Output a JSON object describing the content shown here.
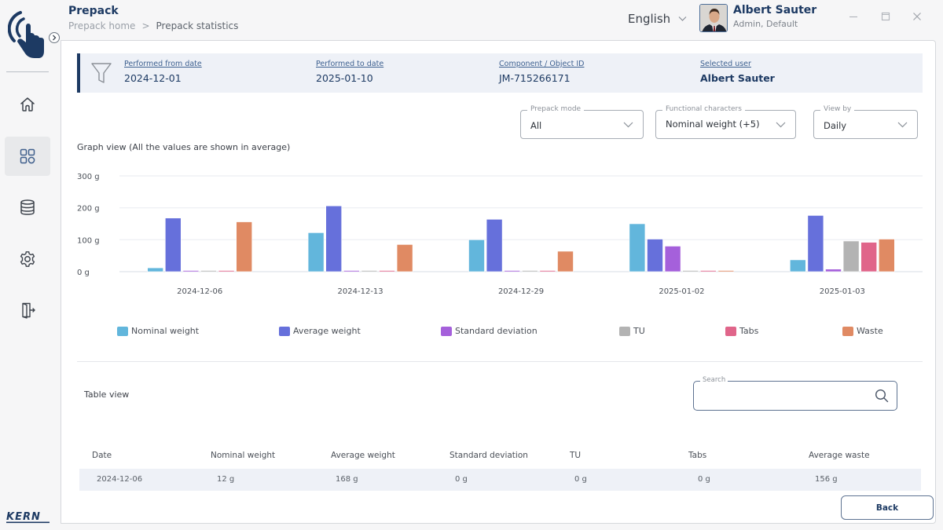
{
  "app": {
    "title": "Prepack",
    "breadcrumb": [
      "Prepack home",
      "Prepack statistics"
    ],
    "breadcrumb_separator": ">",
    "language": "English",
    "brand": "KERN"
  },
  "user": {
    "name": "Albert Sauter",
    "role": "Admin, Default"
  },
  "sidebar": {
    "items": [
      {
        "name": "home",
        "icon": "home-icon",
        "active": false
      },
      {
        "name": "dashboard",
        "icon": "grid-icon",
        "active": true
      },
      {
        "name": "database",
        "icon": "database-icon",
        "active": false
      },
      {
        "name": "settings",
        "icon": "gear-icon",
        "active": false
      },
      {
        "name": "logout",
        "icon": "logout-icon",
        "active": false
      }
    ]
  },
  "filters": {
    "from_date": {
      "label": "Performed from date",
      "value": "2024-12-01"
    },
    "to_date": {
      "label": "Performed to date",
      "value": "2025-01-10"
    },
    "component": {
      "label": "Component / Object ID",
      "value": "JM-715266171"
    },
    "user": {
      "label": "Selected user",
      "value": "Albert Sauter"
    }
  },
  "selects": {
    "prepack_mode": {
      "label": "Prepack mode",
      "value": "All"
    },
    "functional_characters": {
      "label": "Functional characters",
      "value": "Nominal weight (+5)"
    },
    "view_by": {
      "label": "View by",
      "value": "Daily"
    }
  },
  "graph": {
    "title": "Graph view (All the values are shown in average)"
  },
  "chart_data": {
    "type": "bar",
    "title": "Graph view (All the values are shown in average)",
    "xlabel": "",
    "ylabel": "",
    "ylim": [
      0,
      300
    ],
    "yticks": [
      0,
      100,
      200,
      300
    ],
    "ytick_labels": [
      "0 g",
      "100 g",
      "200 g",
      "300 g"
    ],
    "grid": true,
    "legend": "bottom",
    "categories": [
      "2024-12-06",
      "2024-12-13",
      "2024-12-29",
      "2025-01-02",
      "2025-01-03"
    ],
    "series": [
      {
        "name": "Nominal weight",
        "color": "#62b6dc",
        "values": [
          12,
          122,
          100,
          150,
          37
        ]
      },
      {
        "name": "Average weight",
        "color": "#6670db",
        "values": [
          168,
          206,
          164,
          102,
          176
        ]
      },
      {
        "name": "Standard deviation",
        "color": "#a560db",
        "values": [
          0,
          0,
          0,
          80,
          8
        ]
      },
      {
        "name": "TU",
        "color": "#b3b3b3",
        "values": [
          0,
          0,
          0,
          0,
          96
        ]
      },
      {
        "name": "Tabs",
        "color": "#e0658a",
        "values": [
          0,
          0,
          0,
          0,
          92
        ]
      },
      {
        "name": "Waste",
        "color": "#e08a63",
        "values": [
          156,
          85,
          64,
          2,
          102
        ]
      }
    ]
  },
  "table": {
    "title": "Table view",
    "search": {
      "label": "Search",
      "value": ""
    },
    "columns": [
      "Date",
      "Nominal weight",
      "Average weight",
      "Standard deviation",
      "TU",
      "Tabs",
      "Average waste"
    ],
    "rows": [
      [
        "2024-12-06",
        "12 g",
        "168 g",
        "0 g",
        "0 g",
        "0 g",
        "156 g"
      ]
    ]
  },
  "actions": {
    "back": "Back"
  },
  "colors": {
    "primary": "#1d3a63",
    "filter_bg": "#eef1f7",
    "border": "#5d7291"
  }
}
